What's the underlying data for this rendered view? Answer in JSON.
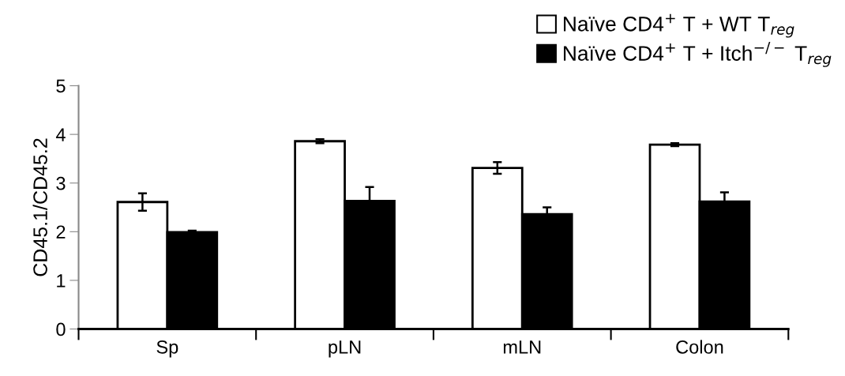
{
  "chart_data": {
    "type": "bar",
    "ylabel": "CD45.1/CD45.2",
    "categories": [
      "Sp",
      "pLN",
      "mLN",
      "Colon"
    ],
    "series": [
      {
        "name": "Naïve CD4$^{+}$ T + WT T$_{reg}$",
        "color": "#ffffff",
        "values": [
          2.61,
          3.86,
          3.31,
          3.79
        ],
        "errors": [
          0.18,
          0.04,
          0.12,
          0.03
        ]
      },
      {
        "name": "Naïve CD4$^{+}$ T + Itch$^{−/−}$ T$_{reg}$",
        "color": "#000000",
        "values": [
          1.99,
          2.63,
          2.36,
          2.62
        ],
        "errors": [
          0.03,
          0.29,
          0.14,
          0.19
        ]
      }
    ],
    "ylim": [
      0,
      5
    ],
    "yticks": [
      0,
      1,
      2,
      3,
      4,
      5
    ],
    "grid": false,
    "legend": "top right"
  }
}
